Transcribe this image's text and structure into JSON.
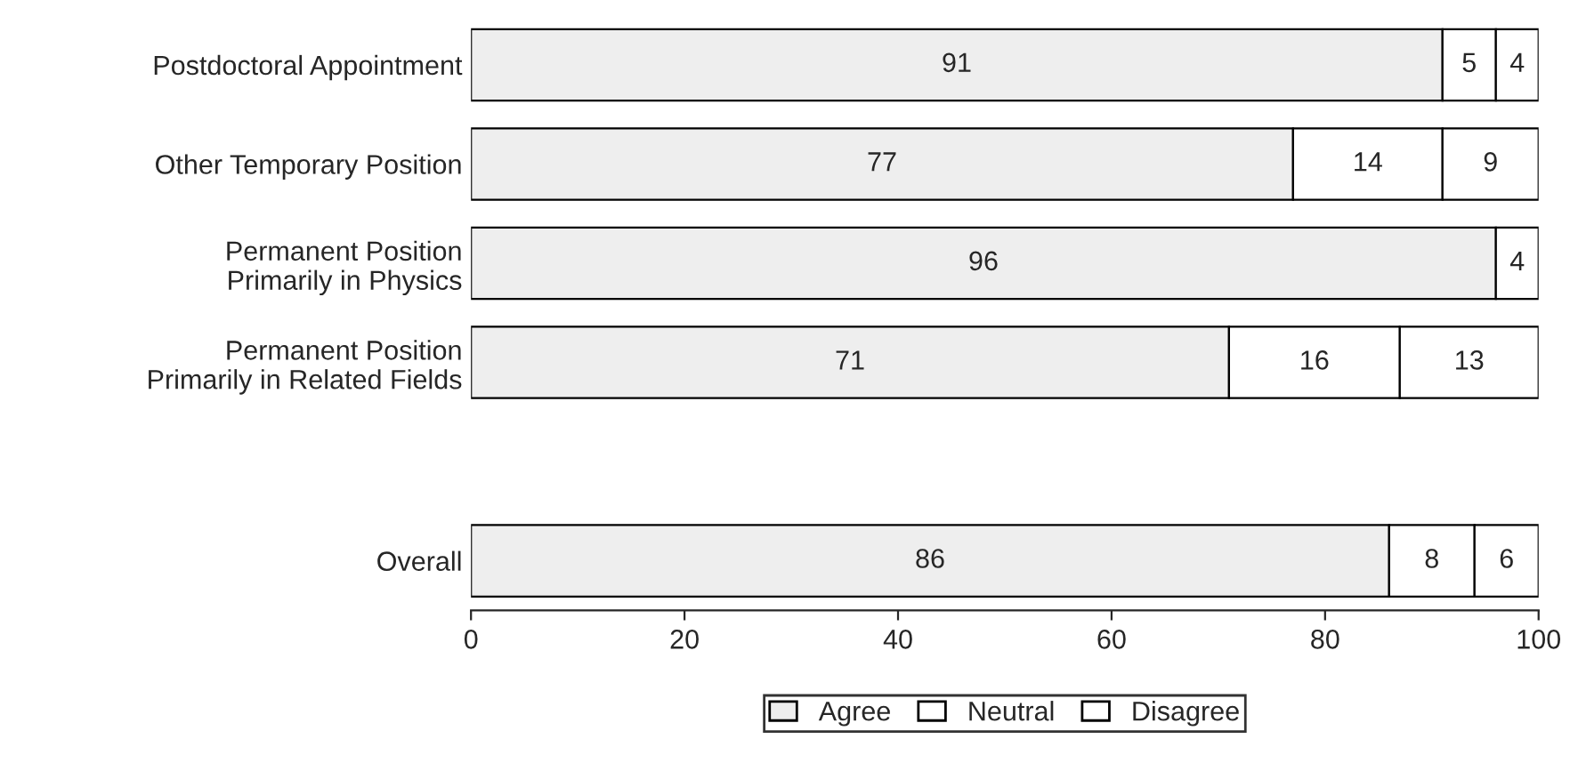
{
  "chart_data": {
    "type": "bar",
    "orientation": "horizontal",
    "stacked": true,
    "categories": [
      "Postdoctoral Appointment",
      "Other Temporary Position",
      "Permanent Position\nPrimarily in Physics",
      "Permanent Position\nPrimarily in Related Fields",
      null,
      "Overall"
    ],
    "series": [
      {
        "name": "Agree",
        "color": "#eeeeee",
        "values": [
          91,
          77,
          96,
          71,
          null,
          86
        ]
      },
      {
        "name": "Neutral",
        "color": "#ffffff",
        "values": [
          5,
          14,
          null,
          16,
          null,
          8
        ]
      },
      {
        "name": "Disagree",
        "color": "#ffffff",
        "values": [
          4,
          9,
          4,
          13,
          null,
          6
        ]
      }
    ],
    "xlim": [
      0,
      100
    ],
    "xticks": [
      0,
      20,
      40,
      60,
      80,
      100
    ],
    "data_labels": true,
    "grid": false,
    "legend": "bottom"
  }
}
